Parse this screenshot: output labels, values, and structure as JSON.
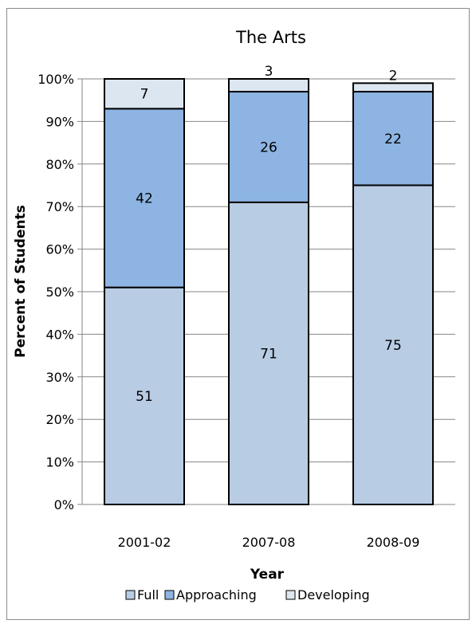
{
  "chart_data": {
    "type": "bar",
    "stacked": true,
    "title": "The Arts",
    "xlabel": "Year",
    "ylabel": "Percent of Students",
    "ylim": [
      0,
      100
    ],
    "yticks": [
      "0%",
      "10%",
      "20%",
      "30%",
      "40%",
      "50%",
      "60%",
      "70%",
      "80%",
      "90%",
      "100%"
    ],
    "categories": [
      "2001-02",
      "2007-08",
      "2008-09"
    ],
    "series": [
      {
        "name": "Full",
        "values": [
          51,
          71,
          75
        ],
        "color": "#b8cce4"
      },
      {
        "name": "Approaching",
        "values": [
          42,
          26,
          22
        ],
        "color": "#8db4e2"
      },
      {
        "name": "Developing",
        "values": [
          7,
          3,
          2
        ],
        "color": "#dce6f1"
      }
    ],
    "grid": true,
    "legend": "bottom"
  }
}
